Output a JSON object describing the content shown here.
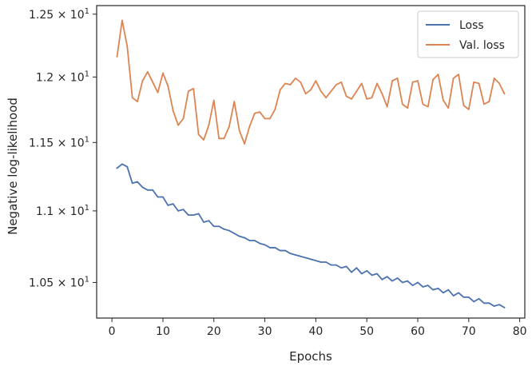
{
  "chart_data": {
    "type": "line",
    "xlabel": "Epochs",
    "ylabel": "Negative log-likelihood",
    "yscale": "log",
    "xlim": [
      -3,
      81
    ],
    "ylim": [
      10.26,
      12.57
    ],
    "grid": false,
    "legend_placement": "top-right",
    "x_ticks": [
      0,
      10,
      20,
      30,
      40,
      50,
      60,
      70,
      80
    ],
    "x_tick_labels": [
      "0",
      "10",
      "20",
      "30",
      "40",
      "50",
      "60",
      "70",
      "80"
    ],
    "y_ticks": [
      10.5,
      11.0,
      11.5,
      12.0,
      12.5
    ],
    "y_tick_labels": [
      {
        "mant": "1.05",
        "exp": "1"
      },
      {
        "mant": "1.1",
        "exp": "1"
      },
      {
        "mant": "1.15",
        "exp": "1"
      },
      {
        "mant": "1.2",
        "exp": "1"
      },
      {
        "mant": "1.25",
        "exp": "1"
      }
    ],
    "x": [
      1,
      2,
      3,
      4,
      5,
      6,
      7,
      8,
      9,
      10,
      11,
      12,
      13,
      14,
      15,
      16,
      17,
      18,
      19,
      20,
      21,
      22,
      23,
      24,
      25,
      26,
      27,
      28,
      29,
      30,
      31,
      32,
      33,
      34,
      35,
      36,
      37,
      38,
      39,
      40,
      41,
      42,
      43,
      44,
      45,
      46,
      47,
      48,
      49,
      50,
      51,
      52,
      53,
      54,
      55,
      56,
      57,
      58,
      59,
      60,
      61,
      62,
      63,
      64,
      65,
      66,
      67,
      68,
      69,
      70,
      71,
      72,
      73,
      74,
      75,
      76,
      77
    ],
    "series": [
      {
        "name": "Loss",
        "color": "#4c72b0",
        "values": [
          11.31,
          11.34,
          11.32,
          11.2,
          11.21,
          11.17,
          11.15,
          11.15,
          11.1,
          11.1,
          11.04,
          11.05,
          11.0,
          11.01,
          10.97,
          10.97,
          10.98,
          10.92,
          10.93,
          10.89,
          10.89,
          10.87,
          10.86,
          10.84,
          10.82,
          10.81,
          10.79,
          10.79,
          10.77,
          10.76,
          10.74,
          10.74,
          10.72,
          10.72,
          10.7,
          10.69,
          10.68,
          10.67,
          10.66,
          10.65,
          10.64,
          10.64,
          10.62,
          10.62,
          10.6,
          10.61,
          10.57,
          10.6,
          10.56,
          10.58,
          10.55,
          10.56,
          10.52,
          10.54,
          10.51,
          10.53,
          10.5,
          10.51,
          10.48,
          10.5,
          10.47,
          10.48,
          10.45,
          10.46,
          10.43,
          10.45,
          10.41,
          10.43,
          10.4,
          10.4,
          10.37,
          10.39,
          10.36,
          10.36,
          10.34,
          10.35,
          10.33
        ]
      },
      {
        "name": "Val. loss",
        "color": "#dd8452",
        "values": [
          12.16,
          12.45,
          12.24,
          11.84,
          11.81,
          11.97,
          12.04,
          11.96,
          11.88,
          12.03,
          11.93,
          11.74,
          11.63,
          11.68,
          11.89,
          11.91,
          11.56,
          11.52,
          11.63,
          11.82,
          11.53,
          11.53,
          11.62,
          11.81,
          11.59,
          11.49,
          11.62,
          11.72,
          11.73,
          11.68,
          11.68,
          11.75,
          11.9,
          11.95,
          11.94,
          11.99,
          11.96,
          11.87,
          11.9,
          11.97,
          11.89,
          11.84,
          11.89,
          11.94,
          11.96,
          11.85,
          11.83,
          11.89,
          11.95,
          11.83,
          11.84,
          11.95,
          11.87,
          11.77,
          11.97,
          11.99,
          11.79,
          11.76,
          11.96,
          11.97,
          11.79,
          11.77,
          11.98,
          12.02,
          11.82,
          11.76,
          11.99,
          12.02,
          11.78,
          11.75,
          11.96,
          11.95,
          11.79,
          11.81,
          11.99,
          11.95,
          11.87
        ]
      }
    ]
  }
}
